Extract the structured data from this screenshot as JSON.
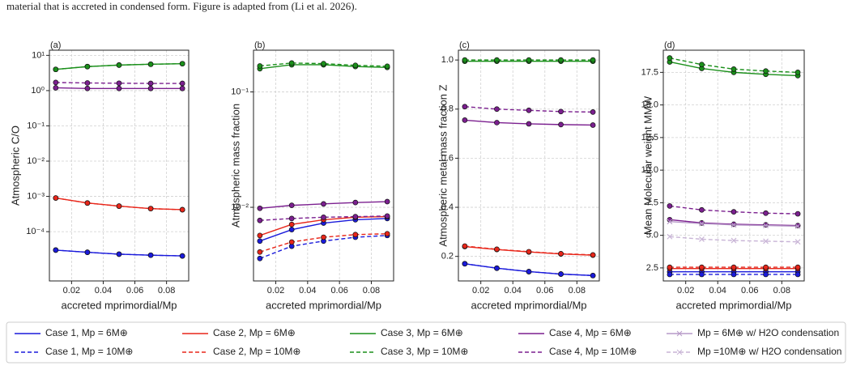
{
  "caption": "material that is accreted in condensed form. Figure is adapted from (Li et al. 2026).",
  "chart_data": [
    {
      "type": "line",
      "panel_label": "(a)",
      "y_label": "Atmospheric C/O",
      "x_label": "accreted mprimordial/Mp",
      "x": [
        0.01,
        0.03,
        0.05,
        0.07,
        0.09
      ],
      "xlim": [
        0.006,
        0.094
      ],
      "xticks": [
        0.02,
        0.04,
        0.06,
        0.08
      ],
      "log_y": true,
      "ylim": [
        4e-06,
        14
      ],
      "grid": true,
      "yticks": [
        {
          "value": 0.0001,
          "label": "10⁻⁴"
        },
        {
          "value": 0.001,
          "label": "10⁻³"
        },
        {
          "value": 0.01,
          "label": "10⁻²"
        },
        {
          "value": 0.1,
          "label": "10⁻¹"
        },
        {
          "value": 1,
          "label": "10⁰"
        },
        {
          "value": 10,
          "label": "10¹"
        }
      ],
      "series": [
        {
          "color": "#1a1adb",
          "line_style": "solid",
          "marker": "o",
          "values": [
            3e-05,
            2.6e-05,
            2.3e-05,
            2.15e-05,
            2.05e-05
          ]
        },
        {
          "color": "#1a1adb",
          "line_style": "dashed",
          "marker": "o",
          "values": [
            3e-05,
            2.6e-05,
            2.3e-05,
            2.15e-05,
            2.05e-05
          ]
        },
        {
          "color": "#e8261a",
          "line_style": "solid",
          "marker": "o",
          "values": [
            0.0009,
            0.00065,
            0.00053,
            0.00045,
            0.00042
          ]
        },
        {
          "color": "#e8261a",
          "line_style": "dashed",
          "marker": "o",
          "values": [
            0.0009,
            0.00065,
            0.00053,
            0.00045,
            0.00042
          ]
        },
        {
          "color": "#1a8f1a",
          "line_style": "solid",
          "marker": "o",
          "values": [
            4.0,
            4.8,
            5.3,
            5.6,
            5.8
          ]
        },
        {
          "color": "#1a8f1a",
          "line_style": "dashed",
          "marker": "o",
          "values": [
            4.0,
            4.8,
            5.3,
            5.6,
            5.8
          ]
        },
        {
          "color": "#7b1f8f",
          "line_style": "solid",
          "marker": "o",
          "values": [
            1.2,
            1.15,
            1.15,
            1.15,
            1.15
          ]
        },
        {
          "color": "#7b1f8f",
          "line_style": "dashed",
          "marker": "o",
          "values": [
            1.7,
            1.65,
            1.62,
            1.6,
            1.6
          ]
        }
      ]
    },
    {
      "type": "line",
      "panel_label": "(b)",
      "y_label": "Atmospheric mass fraction",
      "x_label": "accreted mprimordial/Mp",
      "x": [
        0.01,
        0.03,
        0.05,
        0.07,
        0.09
      ],
      "xlim": [
        0.006,
        0.094
      ],
      "xticks": [
        0.02,
        0.04,
        0.06,
        0.08
      ],
      "log_y": true,
      "ylim": [
        0.0023,
        0.23
      ],
      "grid": true,
      "yticks": [
        {
          "value": 0.01,
          "label": "10⁻²"
        },
        {
          "value": 0.1,
          "label": "10⁻¹"
        }
      ],
      "series": [
        {
          "color": "#1a1adb",
          "line_style": "solid",
          "marker": "o",
          "values": [
            0.0051,
            0.0064,
            0.0073,
            0.0078,
            0.008
          ]
        },
        {
          "color": "#1a1adb",
          "line_style": "dashed",
          "marker": "o",
          "values": [
            0.0036,
            0.0046,
            0.0051,
            0.0055,
            0.0057
          ]
        },
        {
          "color": "#e8261a",
          "line_style": "solid",
          "marker": "o",
          "values": [
            0.0057,
            0.0071,
            0.0078,
            0.0082,
            0.0083
          ]
        },
        {
          "color": "#e8261a",
          "line_style": "dashed",
          "marker": "o",
          "values": [
            0.0041,
            0.005,
            0.0055,
            0.0058,
            0.0059
          ]
        },
        {
          "color": "#1a8f1a",
          "line_style": "solid",
          "marker": "o",
          "values": [
            0.159,
            0.172,
            0.172,
            0.166,
            0.163
          ]
        },
        {
          "color": "#1a8f1a",
          "line_style": "dashed",
          "marker": "o",
          "values": [
            0.168,
            0.178,
            0.176,
            0.17,
            0.167
          ]
        },
        {
          "color": "#7b1f8f",
          "line_style": "solid",
          "marker": "o",
          "values": [
            0.0098,
            0.0104,
            0.0107,
            0.011,
            0.0112
          ]
        },
        {
          "color": "#7b1f8f",
          "line_style": "dashed",
          "marker": "o",
          "values": [
            0.0077,
            0.008,
            0.0082,
            0.0083,
            0.0084
          ]
        }
      ]
    },
    {
      "type": "line",
      "panel_label": "(c)",
      "y_label": "Atmospheric metal mass fraction Z",
      "x_label": "accreted mprimordial/Mp",
      "x": [
        0.01,
        0.03,
        0.05,
        0.07,
        0.09
      ],
      "xlim": [
        0.006,
        0.094
      ],
      "xticks": [
        0.02,
        0.04,
        0.06,
        0.08
      ],
      "log_y": false,
      "ylim": [
        0.1,
        1.04
      ],
      "grid": true,
      "yticks": [
        0.2,
        0.4,
        0.6,
        0.8,
        {
          "value": 1,
          "label": "1.0"
        }
      ],
      "series": [
        {
          "color": "#1a1adb",
          "line_style": "solid",
          "marker": "o",
          "values": [
            0.17,
            0.152,
            0.138,
            0.128,
            0.122
          ]
        },
        {
          "color": "#1a1adb",
          "line_style": "dashed",
          "marker": "o",
          "values": [
            0.17,
            0.152,
            0.138,
            0.128,
            0.122
          ]
        },
        {
          "color": "#e8261a",
          "line_style": "solid",
          "marker": "o",
          "values": [
            0.24,
            0.228,
            0.218,
            0.21,
            0.205
          ]
        },
        {
          "color": "#e8261a",
          "line_style": "dashed",
          "marker": "o",
          "values": [
            0.242,
            0.229,
            0.219,
            0.211,
            0.206
          ]
        },
        {
          "color": "#1a8f1a",
          "line_style": "solid",
          "marker": "o",
          "values": [
            0.995,
            0.995,
            0.995,
            0.995,
            0.995
          ]
        },
        {
          "color": "#1a8f1a",
          "line_style": "dashed",
          "marker": "o",
          "values": [
            1.0,
            1.0,
            1.0,
            1.0,
            1.0
          ]
        },
        {
          "color": "#7b1f8f",
          "line_style": "solid",
          "marker": "o",
          "values": [
            0.755,
            0.745,
            0.74,
            0.737,
            0.735
          ]
        },
        {
          "color": "#7b1f8f",
          "line_style": "dashed",
          "marker": "o",
          "values": [
            0.81,
            0.8,
            0.795,
            0.79,
            0.788
          ]
        }
      ]
    },
    {
      "type": "line",
      "panel_label": "(d)",
      "y_label": "Mean Molecular weight MMW",
      "x_label": "accreted mprimordial/Mp",
      "x": [
        0.01,
        0.03,
        0.05,
        0.07,
        0.09
      ],
      "xlim": [
        0.006,
        0.094
      ],
      "xticks": [
        0.02,
        0.04,
        0.06,
        0.08
      ],
      "log_y": false,
      "ylim": [
        1.5,
        19.2
      ],
      "grid": true,
      "yticks": [
        2.5,
        {
          "value": 5,
          "label": "5.0"
        },
        7.5,
        {
          "value": 10,
          "label": "10.0"
        },
        12.5,
        {
          "value": 15,
          "label": "15.0"
        },
        17.5
      ],
      "series": [
        {
          "name": "Case 1, Mp = 6M⊕",
          "color": "#1a1adb",
          "line_style": "solid",
          "marker": "o",
          "values": [
            2.2,
            2.2,
            2.2,
            2.2,
            2.2
          ]
        },
        {
          "name": "Case 1, Mp = 10M⊕",
          "color": "#1a1adb",
          "line_style": "dashed",
          "marker": "o",
          "values": [
            2.0,
            2.0,
            2.0,
            2.0,
            2.0
          ]
        },
        {
          "name": "Case 2, Mp = 6M⊕",
          "color": "#e8261a",
          "line_style": "solid",
          "marker": "o",
          "values": [
            2.45,
            2.45,
            2.45,
            2.45,
            2.45
          ]
        },
        {
          "name": "Case 2, Mp = 10M⊕",
          "color": "#e8261a",
          "line_style": "dashed",
          "marker": "o",
          "values": [
            2.55,
            2.55,
            2.55,
            2.55,
            2.55
          ]
        },
        {
          "name": "Case 3, Mp = 6M⊕",
          "color": "#1a8f1a",
          "line_style": "solid",
          "marker": "o",
          "values": [
            18.3,
            17.8,
            17.5,
            17.35,
            17.25
          ]
        },
        {
          "name": "Case 3, Mp = 10M⊕",
          "color": "#1a8f1a",
          "line_style": "dashed",
          "marker": "o",
          "values": [
            18.6,
            18.1,
            17.75,
            17.6,
            17.5
          ]
        },
        {
          "name": "Case 4, Mp = 6M⊕",
          "color": "#7b1f8f",
          "line_style": "solid",
          "marker": "o",
          "values": [
            6.2,
            5.95,
            5.85,
            5.8,
            5.75
          ]
        },
        {
          "name": "Case 4, Mp = 10M⊕",
          "color": "#7b1f8f",
          "line_style": "dashed",
          "marker": "o",
          "values": [
            7.25,
            6.95,
            6.8,
            6.7,
            6.65
          ]
        },
        {
          "name": "Mp = 6M⊕ w/ H2O condensation",
          "color": "#b79ac8",
          "line_style": "solid",
          "marker": "x",
          "values": [
            6.05,
            5.9,
            5.8,
            5.75,
            5.7
          ]
        },
        {
          "name": "Mp =10M⊕ w/ H2O condensation",
          "color": "#c8b4d6",
          "line_style": "dashed",
          "marker": "x",
          "values": [
            4.9,
            4.7,
            4.6,
            4.55,
            4.5
          ]
        }
      ]
    }
  ]
}
